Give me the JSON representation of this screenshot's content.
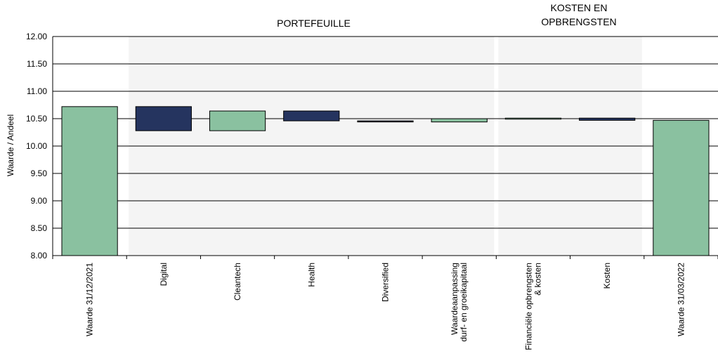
{
  "chart_data": {
    "type": "waterfall",
    "title": "",
    "ylabel": "Waarde / Andeel",
    "ylim": [
      8.0,
      12.0
    ],
    "yticks": [
      "8.00",
      "8.50",
      "9.00",
      "9.50",
      "10.00",
      "10.50",
      "11.00",
      "11.50",
      "12.00"
    ],
    "grid": true,
    "colors": {
      "increase": "#8AC1A0",
      "decrease": "#25345F",
      "total": "#8AC1A0",
      "group_band": "#F4F4F4"
    },
    "groups": [
      {
        "label": "PORTEFEUILLE",
        "category_range": [
          1,
          5
        ]
      },
      {
        "label_lines": [
          "KOSTEN EN",
          "OPBRENGSTEN"
        ],
        "category_range": [
          6,
          7
        ]
      }
    ],
    "categories": [
      {
        "label_lines": [
          "Waarde 31/12/2021"
        ],
        "start": 8.0,
        "end": 10.72,
        "kind": "total"
      },
      {
        "label_lines": [
          "Digital"
        ],
        "start": 10.72,
        "end": 10.28,
        "kind": "decrease"
      },
      {
        "label_lines": [
          "Cleantech"
        ],
        "start": 10.28,
        "end": 10.64,
        "kind": "increase"
      },
      {
        "label_lines": [
          "Health"
        ],
        "start": 10.64,
        "end": 10.46,
        "kind": "decrease"
      },
      {
        "label_lines": [
          "Diversified"
        ],
        "start": 10.46,
        "end": 10.44,
        "kind": "decrease"
      },
      {
        "label_lines": [
          "Waardeaanpassing",
          "durf- en groeikapitaal"
        ],
        "start": 10.44,
        "end": 10.5,
        "kind": "increase"
      },
      {
        "label_lines": [
          "Financiële opbrengsten",
          "& kosten"
        ],
        "start": 10.5,
        "end": 10.51,
        "kind": "increase"
      },
      {
        "label_lines": [
          "Kosten"
        ],
        "start": 10.51,
        "end": 10.47,
        "kind": "decrease"
      },
      {
        "label_lines": [
          "Waarde 31/03/2022"
        ],
        "start": 8.0,
        "end": 10.47,
        "kind": "total"
      }
    ]
  }
}
